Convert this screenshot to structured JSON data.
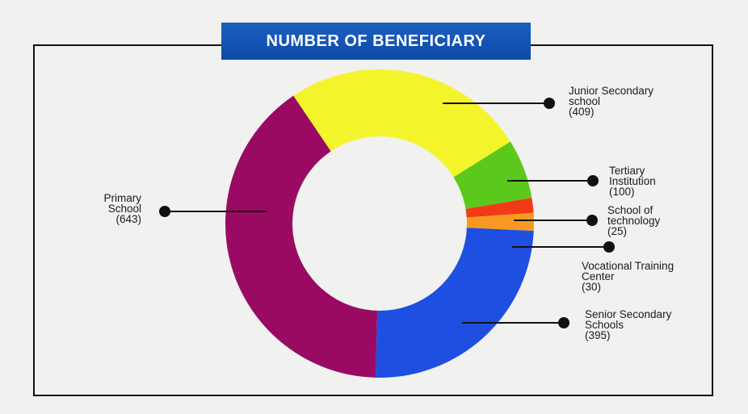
{
  "title": "NUMBER OF BENEFICIARY",
  "colors": {
    "title_bg": "#1457b8",
    "frame": "#111111"
  },
  "chart_data": {
    "type": "pie",
    "donut": true,
    "title": "NUMBER OF BENEFICIARY",
    "slices": [
      {
        "label": "Junior Secondary school",
        "value": 409,
        "value_text": "(409)",
        "color": "#f4f42c"
      },
      {
        "label": "Tertiary Institution",
        "value": 100,
        "value_text": "(100)",
        "color": "#5ac91c"
      },
      {
        "label": "School of technology",
        "value": 25,
        "value_text": "(25)",
        "color": "#f23a18"
      },
      {
        "label": "Vocational Training Center",
        "value": 30,
        "value_text": "(30)",
        "color": "#f79a1f"
      },
      {
        "label": "Senior Secondary Schools",
        "value": 395,
        "value_text": "(395)",
        "color": "#1f4fe0"
      },
      {
        "label": "Primary School",
        "value": 643,
        "value_text": "(643)",
        "color": "#9a0a63"
      }
    ]
  }
}
